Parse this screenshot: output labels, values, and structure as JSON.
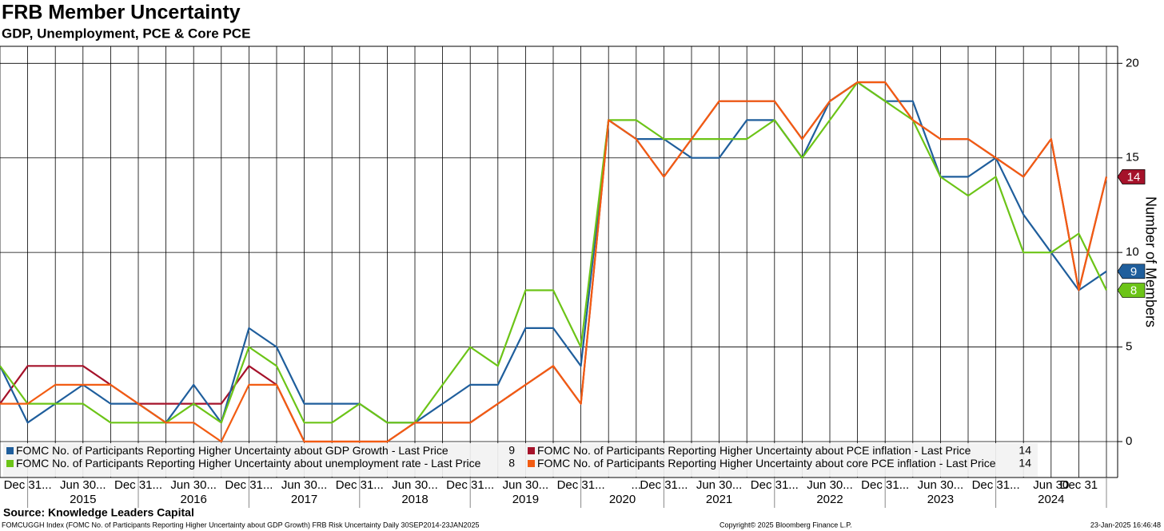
{
  "chart_data": {
    "type": "line",
    "title": "FRB Member Uncertainty",
    "subtitle": "GDP, Unemployment, PCE & Core PCE",
    "y_label": "Number of Members",
    "source": "Source: Knowledge Leaders Capital",
    "footer_left": "FOMCUGGH Index (FOMC No. of Participants Reporting Higher Uncertainty about GDP Growth) FRB Risk Uncertainty  Daily 30SEP2014-23JAN2025",
    "footer_center": "Copyright© 2025 Bloomberg Finance L.P.",
    "footer_right": "23-Jan-2025 16:46:48",
    "categories": [
      null,
      "Dec 31...",
      null,
      "Jun 30...",
      null,
      "Dec 31...",
      null,
      "Jun 30...",
      null,
      "Dec 31...",
      null,
      "Jun 30...",
      null,
      "Dec 31...",
      null,
      "Jun 30...",
      null,
      "Dec 31...",
      null,
      "Jun 30...",
      null,
      "Dec 31...",
      null,
      "...",
      "Dec 31...",
      null,
      "Jun 30...",
      null,
      "Dec 31...",
      null,
      "Jun 30...",
      null,
      "Dec 31...",
      null,
      "Jun 30...",
      null,
      "Dec 31...",
      null,
      "Jun 30",
      "Dec 31",
      null
    ],
    "years": [
      "2015",
      "2016",
      "2017",
      "2018",
      "2019",
      "2020",
      "2021",
      "2022",
      "2023",
      "2024"
    ],
    "legend_suffix": "- Last Price",
    "series": [
      {
        "name": "FOMC No. of Participants Reporting Higher Uncertainty about GDP Growth",
        "color": "#1f5e9c",
        "values": [
          4,
          1,
          2,
          3,
          2,
          2,
          1,
          3,
          1,
          6,
          5,
          2,
          2,
          2,
          1,
          1,
          2,
          3,
          3,
          6,
          6,
          4,
          17,
          16,
          16,
          15,
          15,
          17,
          17,
          15,
          18,
          19,
          18,
          18,
          14,
          14,
          15,
          12,
          10,
          8,
          9
        ]
      },
      {
        "name": "FOMC No. of Participants Reporting Higher Uncertainty about PCE inflation",
        "color": "#a5122a",
        "values": [
          2,
          4,
          4,
          4,
          3,
          2,
          2,
          2,
          2,
          4,
          3,
          0,
          0,
          0,
          0,
          1,
          1,
          1,
          2,
          3,
          4,
          2,
          17,
          16,
          14,
          16,
          18,
          18,
          18,
          16,
          18,
          19,
          19,
          17,
          16,
          16,
          15,
          14,
          16,
          8,
          14
        ]
      },
      {
        "name": "FOMC No. of Participants Reporting Higher Uncertainty about unemployment rate",
        "color": "#6cc417",
        "values": [
          4,
          2,
          2,
          2,
          1,
          1,
          1,
          2,
          1,
          5,
          4,
          1,
          1,
          2,
          1,
          1,
          3,
          5,
          4,
          8,
          8,
          5,
          17,
          17,
          16,
          16,
          16,
          16,
          17,
          15,
          17,
          19,
          18,
          17,
          14,
          13,
          14,
          10,
          10,
          11,
          8
        ]
      },
      {
        "name": "FOMC No. of Participants Reporting Higher Uncertainty about core PCE inflation",
        "color": "#f25c12",
        "values": [
          2,
          2,
          3,
          3,
          3,
          2,
          1,
          1,
          0,
          3,
          3,
          0,
          0,
          0,
          0,
          1,
          1,
          1,
          2,
          3,
          4,
          2,
          17,
          16,
          14,
          16,
          18,
          18,
          18,
          16,
          18,
          19,
          19,
          17,
          16,
          16,
          15,
          14,
          16,
          8,
          14
        ]
      }
    ],
    "ylim": [
      -1.9,
      20.9
    ],
    "yticks": [
      0,
      5,
      10,
      15,
      20
    ],
    "grid": true
  }
}
